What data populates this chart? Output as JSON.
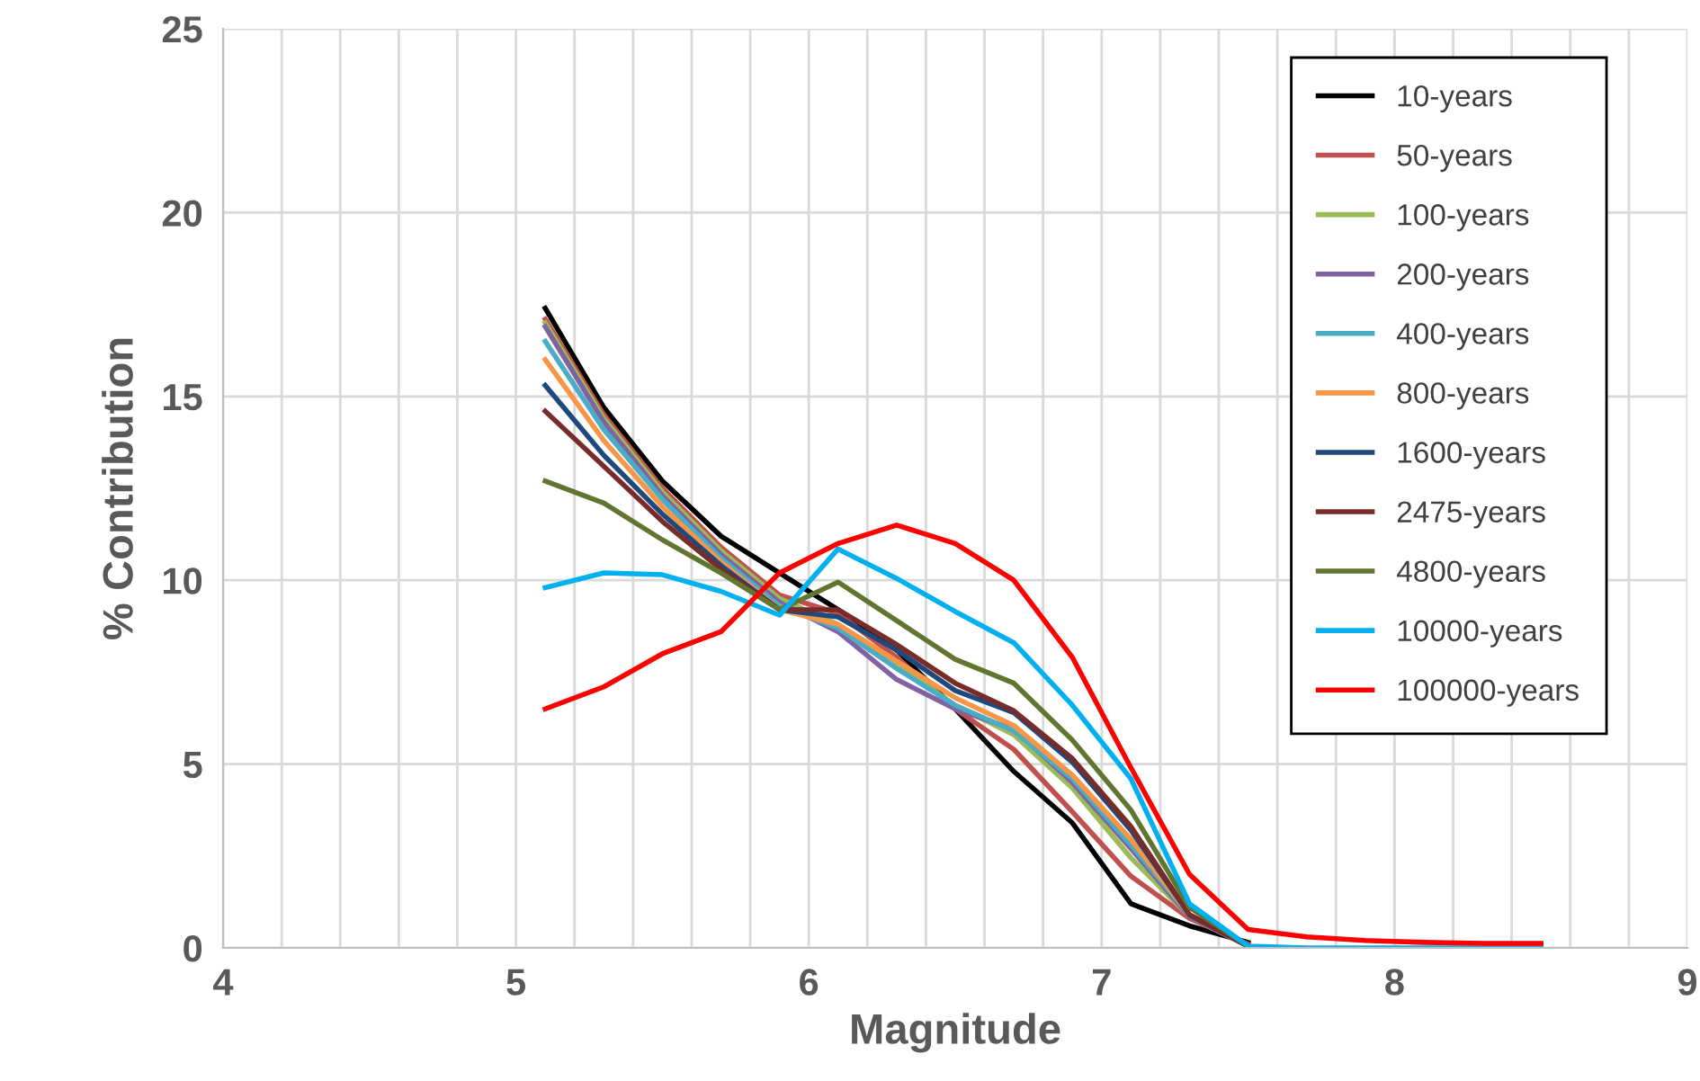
{
  "chart_data": {
    "type": "line",
    "xlabel": "Magnitude",
    "ylabel": "% Contribution",
    "x": [
      5.1,
      5.3,
      5.5,
      5.7,
      5.9,
      6.1,
      6.3,
      6.5,
      6.7,
      6.9,
      7.1,
      7.3,
      7.5,
      7.7,
      7.9,
      8.1,
      8.3,
      8.5
    ],
    "xlim": [
      4,
      9
    ],
    "xticks": [
      4,
      {
        "value": 4.2,
        "label": null
      },
      {
        "value": 4.4,
        "label": null
      },
      {
        "value": 4.6,
        "label": null
      },
      {
        "value": 4.8,
        "label": null
      },
      5,
      {
        "value": 5.2,
        "label": null
      },
      {
        "value": 5.4,
        "label": null
      },
      {
        "value": 5.6,
        "label": null
      },
      {
        "value": 5.8,
        "label": null
      },
      6,
      {
        "value": 6.2,
        "label": null
      },
      {
        "value": 6.4,
        "label": null
      },
      {
        "value": 6.6,
        "label": null
      },
      {
        "value": 6.8,
        "label": null
      },
      7,
      {
        "value": 7.2,
        "label": null
      },
      {
        "value": 7.4,
        "label": null
      },
      {
        "value": 7.6,
        "label": null
      },
      {
        "value": 7.8,
        "label": null
      },
      8,
      {
        "value": 8.2,
        "label": null
      },
      {
        "value": 8.4,
        "label": null
      },
      {
        "value": 8.6,
        "label": null
      },
      {
        "value": 8.8,
        "label": null
      },
      9
    ],
    "ylim": [
      0,
      25
    ],
    "yticks": [
      0,
      5,
      10,
      15,
      20,
      25
    ],
    "grid": true,
    "legend": "top right",
    "marker": "none",
    "line_style": "solid",
    "series": [
      {
        "name": "10-years",
        "color": "#000000",
        "values": [
          17.4,
          14.7,
          12.7,
          11.2,
          10.2,
          9.2,
          8.1,
          6.5,
          4.8,
          3.4,
          1.2,
          0.6,
          0.15,
          null,
          null,
          null,
          null,
          null
        ]
      },
      {
        "name": "50-years",
        "color": "#c0504d",
        "values": [
          17.1,
          14.5,
          12.5,
          10.9,
          9.6,
          9.1,
          7.9,
          6.5,
          5.4,
          3.7,
          1.95,
          0.8,
          0.1,
          null,
          null,
          null,
          null,
          null
        ]
      },
      {
        "name": "100-years",
        "color": "#9bbb59",
        "values": [
          17.0,
          14.4,
          12.4,
          10.8,
          9.5,
          8.8,
          7.7,
          6.6,
          5.8,
          4.35,
          2.45,
          0.85,
          0.05,
          null,
          null,
          null,
          null,
          null
        ]
      },
      {
        "name": "200-years",
        "color": "#8064a2",
        "values": [
          16.9,
          14.3,
          12.3,
          10.7,
          9.4,
          8.6,
          7.3,
          6.5,
          5.95,
          4.5,
          2.7,
          0.85,
          0.05,
          null,
          null,
          null,
          null,
          null
        ]
      },
      {
        "name": "400-years",
        "color": "#4bacc6",
        "values": [
          16.5,
          14.1,
          12.2,
          10.6,
          9.3,
          8.7,
          7.6,
          6.6,
          5.9,
          4.6,
          2.8,
          0.9,
          0.05,
          null,
          null,
          null,
          null,
          null
        ]
      },
      {
        "name": "800-years",
        "color": "#f79646",
        "values": [
          16.0,
          13.8,
          12.0,
          10.5,
          9.2,
          8.8,
          7.8,
          6.8,
          6.05,
          4.7,
          2.95,
          0.9,
          0.05,
          null,
          null,
          null,
          null,
          null
        ]
      },
      {
        "name": "1600-years",
        "color": "#1f497d",
        "values": [
          15.3,
          13.4,
          11.8,
          10.4,
          9.2,
          9.0,
          8.1,
          7.0,
          6.4,
          5.05,
          3.2,
          0.9,
          0.05,
          null,
          null,
          null,
          null,
          null
        ]
      },
      {
        "name": "2475-years",
        "color": "#772c2a",
        "values": [
          14.6,
          13.1,
          11.6,
          10.3,
          9.2,
          9.2,
          8.25,
          7.2,
          6.45,
          5.15,
          3.3,
          0.9,
          0.05,
          null,
          null,
          null,
          null,
          null
        ]
      },
      {
        "name": "4800-years",
        "color": "#5f7530",
        "values": [
          12.7,
          12.1,
          11.1,
          10.2,
          9.2,
          9.95,
          8.9,
          7.85,
          7.2,
          5.65,
          3.75,
          1.1,
          0.05,
          null,
          null,
          null,
          null,
          null
        ]
      },
      {
        "name": "10000-years",
        "color": "#00b0f0",
        "values": [
          9.8,
          10.2,
          10.15,
          9.7,
          9.05,
          10.85,
          10.05,
          9.15,
          8.3,
          6.6,
          4.6,
          1.2,
          0.05,
          0,
          0,
          0,
          0,
          0
        ]
      },
      {
        "name": "100000-years",
        "color": "#ff0000",
        "values": [
          6.5,
          7.1,
          8.0,
          8.6,
          10.2,
          11.0,
          11.5,
          11.0,
          10.0,
          7.9,
          4.9,
          2.0,
          0.5,
          0.3,
          0.2,
          0.15,
          0.12,
          0.12
        ]
      }
    ]
  }
}
